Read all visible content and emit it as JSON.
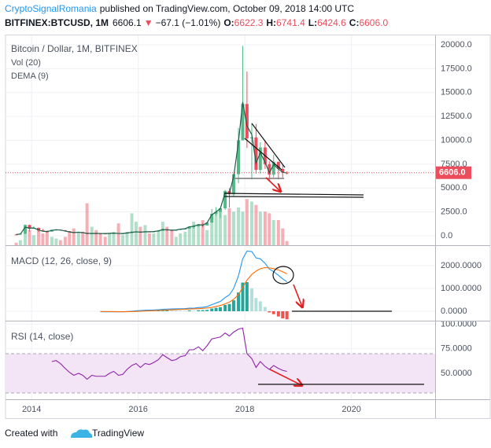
{
  "header": {
    "author": "CryptoSignalRomania",
    "published": "published on TradingView.com, October 09, 2018 14:00 UTC",
    "symbol": "BITFINEX:BTCUSD, 1M",
    "last": "6606.1",
    "arrow": "▼",
    "change": "−67.1 (−1.01%)",
    "ohlc": [
      {
        "key": "O:",
        "value": "6622.3"
      },
      {
        "key": "H:",
        "value": "6741.4"
      },
      {
        "key": "L:",
        "value": "6424.6"
      },
      {
        "key": "C:",
        "value": "6606.0"
      }
    ]
  },
  "chart_data": [
    {
      "type": "candlestick",
      "title": "Bitcoin / Dollar, 1M, BITFINEX",
      "up_color": "#53b987",
      "down_color": "#eb4d5c",
      "grid": true,
      "xlim": [
        2013.51,
        2021.57
      ],
      "xticks": [
        2014,
        2016,
        2018,
        2020
      ],
      "ylim": [
        -990,
        20990
      ],
      "yticks": [
        {
          "value": 0,
          "label": "0.0"
        },
        {
          "value": 2500,
          "label": "2500.0"
        },
        {
          "value": 5000,
          "label": "5000.0"
        },
        {
          "value": 7500,
          "label": "7500.0"
        },
        {
          "value": 10000,
          "label": "10000.0"
        },
        {
          "value": 12500,
          "label": "12500.0"
        },
        {
          "value": 15000,
          "label": "15000.0"
        },
        {
          "value": 17500,
          "label": "17500.0"
        },
        {
          "value": 20000,
          "label": "20000.0"
        }
      ],
      "x": [
        2013.71,
        2013.79,
        2013.88,
        2013.96,
        2014.04,
        2014.13,
        2014.21,
        2014.29,
        2014.38,
        2014.46,
        2014.54,
        2014.63,
        2014.71,
        2014.79,
        2014.88,
        2014.96,
        2015.04,
        2015.13,
        2015.21,
        2015.29,
        2015.38,
        2015.46,
        2015.54,
        2015.63,
        2015.71,
        2015.79,
        2015.88,
        2015.96,
        2016.04,
        2016.13,
        2016.21,
        2016.29,
        2016.38,
        2016.46,
        2016.54,
        2016.63,
        2016.71,
        2016.79,
        2016.88,
        2016.96,
        2017.04,
        2017.13,
        2017.21,
        2017.29,
        2017.38,
        2017.46,
        2017.54,
        2017.63,
        2017.71,
        2017.79,
        2017.88,
        2017.96,
        2018.04,
        2018.13,
        2018.21,
        2018.29,
        2018.38,
        2018.46,
        2018.54,
        2018.63,
        2018.71,
        2018.79
      ],
      "open": [
        135,
        133,
        205,
        1130,
        740,
        830,
        560,
        455,
        445,
        630,
        640,
        585,
        480,
        387,
        338,
        378,
        320,
        217,
        254,
        244,
        236,
        230,
        263,
        284,
        230,
        236,
        312,
        377,
        430,
        368,
        437,
        416,
        448,
        530,
        673,
        624,
        575,
        609,
        700,
        742,
        966,
        970,
        1190,
        1080,
        1390,
        2300,
        2500,
        2880,
        4700,
        4340,
        6450,
        10000,
        13800,
        10200,
        10300,
        6900,
        9250,
        7500,
        6400,
        7750,
        7000,
        6622.3
      ],
      "high": [
        140,
        215,
        1200,
        1160,
        1000,
        850,
        710,
        550,
        640,
        680,
        640,
        600,
        500,
        420,
        460,
        390,
        320,
        260,
        300,
        260,
        245,
        268,
        315,
        285,
        245,
        330,
        500,
        470,
        460,
        445,
        440,
        470,
        550,
        780,
        705,
        630,
        630,
        720,
        760,
        980,
        1150,
        1200,
        1350,
        1400,
        2800,
        3000,
        2900,
        4800,
        5000,
        6450,
        11300,
        19890,
        17200,
        11800,
        11700,
        9800,
        10000,
        7800,
        8500,
        7750,
        7400,
        6741.4
      ],
      "low": [
        120,
        105,
        200,
        450,
        740,
        400,
        440,
        340,
        420,
        550,
        570,
        440,
        350,
        275,
        315,
        300,
        160,
        215,
        235,
        215,
        225,
        215,
        253,
        190,
        225,
        236,
        300,
        350,
        355,
        365,
        400,
        410,
        440,
        525,
        470,
        480,
        570,
        605,
        690,
        740,
        750,
        930,
        890,
        1070,
        1350,
        2100,
        1850,
        2700,
        2950,
        4100,
        5500,
        10000,
        9200,
        5900,
        6500,
        6500,
        7000,
        5750,
        6100,
        5900,
        6100,
        6424.6
      ],
      "close": [
        133,
        205,
        1130,
        740,
        830,
        560,
        455,
        445,
        630,
        640,
        585,
        480,
        387,
        338,
        378,
        320,
        217,
        254,
        244,
        236,
        230,
        263,
        284,
        230,
        236,
        312,
        377,
        430,
        368,
        437,
        416,
        448,
        530,
        673,
        624,
        575,
        609,
        700,
        742,
        966,
        970,
        1190,
        1080,
        1390,
        2300,
        2500,
        2880,
        4700,
        4340,
        6450,
        10000,
        13800,
        10200,
        10300,
        6900,
        9250,
        7500,
        6400,
        7750,
        7000,
        6622,
        6606
      ],
      "series": [
        {
          "name": "Vol (20)",
          "type": "volume",
          "values": [
            3,
            6,
            14,
            18,
            12,
            20,
            14,
            16,
            10,
            8,
            6,
            10,
            16,
            20,
            14,
            16,
            50,
            22,
            18,
            14,
            10,
            14,
            16,
            26,
            12,
            16,
            38,
            28,
            22,
            24,
            14,
            14,
            18,
            28,
            22,
            18,
            10,
            14,
            16,
            22,
            28,
            22,
            30,
            18,
            34,
            40,
            42,
            36,
            44,
            40,
            45,
            40,
            55,
            52,
            48,
            40,
            40,
            38,
            30,
            30,
            20,
            5
          ]
        },
        {
          "name": "DEMA (9)",
          "type": "line",
          "color": "#1b5e4a",
          "values": [
            130,
            190,
            900,
            800,
            820,
            620,
            480,
            440,
            560,
            630,
            600,
            500,
            400,
            340,
            360,
            330,
            240,
            245,
            245,
            238,
            232,
            255,
            278,
            240,
            236,
            295,
            360,
            415,
            380,
            420,
            418,
            443,
            515,
            645,
            630,
            585,
            605,
            690,
            740,
            940,
            990,
            1170,
            1100,
            1350,
            2200,
            2500,
            2850,
            4500,
            4450,
            6200,
            9800,
            14000,
            11500,
            10600,
            7600,
            8700,
            7700,
            6600,
            7450,
            7000,
            6650,
            6580
          ]
        }
      ],
      "last": {
        "value": 6606,
        "label": "6606.0",
        "color": "#eb4d5c"
      }
    },
    {
      "type": "line",
      "title": "MACD (12, 26, close, 9)",
      "grid": true,
      "xlim": [
        2013.51,
        2021.57
      ],
      "ylim": [
        -414,
        2862
      ],
      "yticks": [
        {
          "value": 0,
          "label": "0.0000"
        },
        {
          "value": 1000,
          "label": "1000.0000"
        },
        {
          "value": 2000,
          "label": "2000.0000"
        }
      ],
      "x": [
        2015.29,
        2015.38,
        2015.46,
        2015.54,
        2015.63,
        2015.71,
        2015.79,
        2015.88,
        2015.96,
        2016.04,
        2016.13,
        2016.21,
        2016.29,
        2016.38,
        2016.46,
        2016.54,
        2016.63,
        2016.71,
        2016.79,
        2016.88,
        2016.96,
        2017.04,
        2017.13,
        2017.21,
        2017.29,
        2017.38,
        2017.46,
        2017.54,
        2017.63,
        2017.71,
        2017.79,
        2017.88,
        2017.96,
        2018.04,
        2018.13,
        2018.21,
        2018.29,
        2018.38,
        2018.46,
        2018.54,
        2018.63,
        2018.71,
        2018.79
      ],
      "series": [
        {
          "type": "bar",
          "colors": [
            "#26a69a",
            "#b2dfdb",
            "#ef5350",
            "#ffcdd2"
          ],
          "values": [
            -10,
            -12,
            -10,
            -4,
            -7,
            -6,
            3,
            14,
            27,
            30,
            35,
            32,
            30,
            32,
            42,
            42,
            37,
            33,
            30,
            28,
            38,
            26,
            45,
            48,
            58,
            119,
            151,
            177,
            278,
            318,
            478,
            822,
            1258,
            1278,
            1006,
            581,
            433,
            186,
            -51,
            -129,
            -231,
            -313,
            -354
          ]
        },
        {
          "type": "line",
          "color": "#2196f3",
          "values": [
            -20,
            -25,
            -25,
            -20,
            -25,
            -25,
            -15,
            0,
            20,
            30,
            45,
            50,
            55,
            65,
            85,
            95,
            100,
            105,
            110,
            115,
            135,
            130,
            160,
            175,
            200,
            290,
            360,
            430,
            600,
            720,
            1000,
            1550,
            2300,
            2640,
            2620,
            2340,
            2300,
            2100,
            1850,
            1740,
            1580,
            1420,
            1290
          ]
        },
        {
          "type": "line",
          "color": "#ff6d00",
          "values": [
            -10,
            -13,
            -15,
            -16,
            -18,
            -19,
            -18,
            -14,
            -7,
            0,
            10,
            18,
            25,
            33,
            43,
            53,
            63,
            72,
            80,
            87,
            97,
            104,
            115,
            127,
            142,
            171,
            209,
            253,
            322,
            402,
            522,
            728,
            1042,
            1362,
            1614,
            1759,
            1867,
            1914,
            1901,
            1869,
            1811,
            1733,
            1644
          ]
        }
      ]
    },
    {
      "type": "line",
      "title": "RSI (14, close)",
      "grid": true,
      "xlim": [
        2013.51,
        2021.57
      ],
      "ylim": [
        23.6,
        102.8
      ],
      "yticks": [
        {
          "value": 50,
          "label": "50.0000"
        },
        {
          "value": 75,
          "label": "75.0000"
        },
        {
          "value": 100,
          "label": "100.0000"
        }
      ],
      "bands": [
        30,
        70
      ],
      "band_color": "#f3e5f5",
      "x": [
        2014.38,
        2014.46,
        2014.54,
        2014.63,
        2014.71,
        2014.79,
        2014.88,
        2014.96,
        2015.04,
        2015.13,
        2015.21,
        2015.29,
        2015.38,
        2015.46,
        2015.54,
        2015.63,
        2015.71,
        2015.79,
        2015.88,
        2015.96,
        2016.04,
        2016.13,
        2016.21,
        2016.29,
        2016.38,
        2016.46,
        2016.54,
        2016.63,
        2016.71,
        2016.79,
        2016.88,
        2016.96,
        2017.04,
        2017.13,
        2017.21,
        2017.29,
        2017.38,
        2017.46,
        2017.54,
        2017.63,
        2017.71,
        2017.79,
        2017.88,
        2017.96,
        2018.04,
        2018.13,
        2018.21,
        2018.29,
        2018.38,
        2018.46,
        2018.54,
        2018.63,
        2018.71,
        2018.79
      ],
      "series": [
        {
          "type": "line",
          "color": "#8e24aa",
          "values": [
            62,
            63,
            60,
            55,
            51,
            48,
            50,
            48,
            44,
            48,
            47,
            47,
            47,
            50,
            52,
            48,
            49,
            54,
            58,
            60,
            56,
            60,
            59,
            61,
            64,
            69,
            66,
            63,
            64,
            67,
            68,
            74,
            74,
            77,
            73,
            78,
            85,
            86,
            87,
            91,
            88,
            92,
            95,
            96,
            70,
            65,
            56,
            62,
            57,
            54,
            58,
            55,
            53,
            52
          ]
        }
      ]
    }
  ],
  "footer": {
    "text": "Created with",
    "brand": "TradingView"
  }
}
